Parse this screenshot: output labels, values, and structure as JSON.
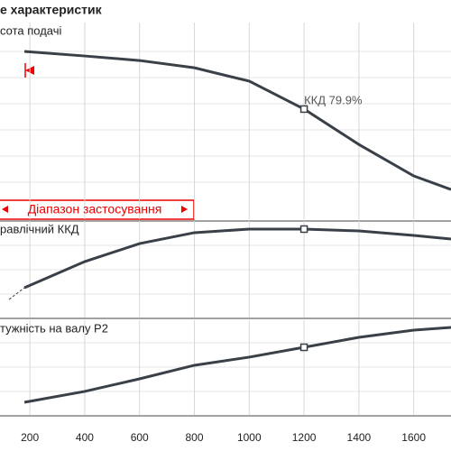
{
  "title": "е характеристик",
  "chart_data": [
    {
      "type": "line",
      "label": "сота подачі",
      "annotation": "ККД  79.9%",
      "range_label": "Діапазон застосування",
      "color": "#3a4048",
      "marker_index": 5,
      "x": [
        180,
        400,
        600,
        800,
        1000,
        1200,
        1400,
        1600,
        1736
      ],
      "values": [
        85.3,
        83,
        80.7,
        77,
        70.2,
        56,
        38,
        22,
        15.1
      ],
      "ylim": [
        0,
        100
      ]
    },
    {
      "type": "line",
      "label": "равлічний ККД",
      "color": "#3a4048",
      "marker_index": 5,
      "x": [
        180,
        400,
        600,
        800,
        1000,
        1200,
        1400,
        1600,
        1736
      ],
      "values": [
        30.8,
        57.9,
        76.6,
        87.9,
        91.6,
        91.6,
        89.7,
        85,
        81.3
      ],
      "ylim": [
        0,
        100
      ]
    },
    {
      "type": "line",
      "label": "тужність на валу P2",
      "color": "#3a4048",
      "marker_index": 5,
      "x": [
        180,
        400,
        600,
        800,
        1000,
        1200,
        1400,
        1600,
        1736
      ],
      "values": [
        13.3,
        24.8,
        38.1,
        52.4,
        61,
        71.4,
        81.9,
        89.5,
        92.4
      ],
      "ylim": [
        0,
        100
      ],
      "xlim": [
        91,
        1736
      ],
      "xticks": [
        200,
        400,
        600,
        800,
        1000,
        1200,
        1400,
        1600
      ]
    }
  ]
}
